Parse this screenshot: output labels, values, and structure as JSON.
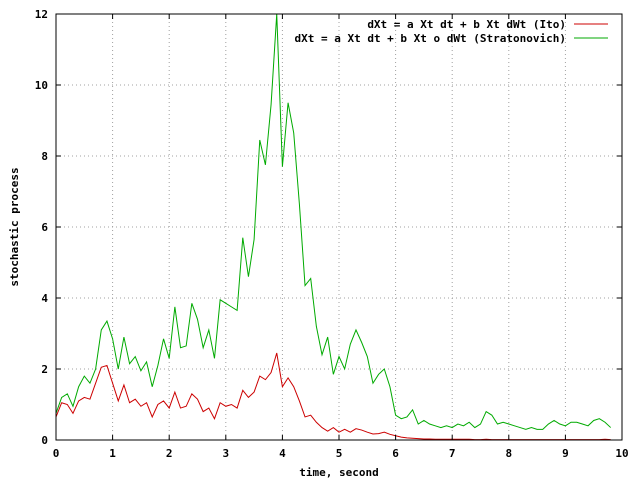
{
  "chart_data": {
    "type": "line",
    "title": "",
    "xlabel": "time, second",
    "ylabel": "stochastic process",
    "xlim": [
      0,
      10
    ],
    "ylim": [
      0,
      12
    ],
    "xticks": [
      "0",
      "1",
      "2",
      "3",
      "4",
      "5",
      "6",
      "7",
      "8",
      "9",
      "10"
    ],
    "yticks": [
      "0",
      "2",
      "4",
      "6",
      "8",
      "10",
      "12"
    ],
    "grid": true,
    "legend_position": "top-right",
    "x": [
      0,
      0.1,
      0.2,
      0.3,
      0.4,
      0.5,
      0.6,
      0.7,
      0.8,
      0.9,
      1.0,
      1.1,
      1.2,
      1.3,
      1.4,
      1.5,
      1.6,
      1.7,
      1.8,
      1.9,
      2.0,
      2.1,
      2.2,
      2.3,
      2.4,
      2.5,
      2.6,
      2.7,
      2.8,
      2.9,
      3.0,
      3.1,
      3.2,
      3.3,
      3.4,
      3.5,
      3.6,
      3.7,
      3.8,
      3.9,
      4.0,
      4.1,
      4.2,
      4.3,
      4.4,
      4.5,
      4.6,
      4.7,
      4.8,
      4.9,
      5.0,
      5.1,
      5.2,
      5.3,
      5.4,
      5.5,
      5.6,
      5.7,
      5.8,
      5.9,
      6.0,
      6.1,
      6.2,
      6.3,
      6.4,
      6.5,
      6.6,
      6.7,
      6.8,
      6.9,
      7.0,
      7.1,
      7.2,
      7.3,
      7.4,
      7.5,
      7.6,
      7.7,
      7.8,
      7.9,
      8.0,
      8.1,
      8.2,
      8.3,
      8.4,
      8.5,
      8.6,
      8.7,
      8.8,
      8.9,
      9.0,
      9.1,
      9.2,
      9.3,
      9.4,
      9.5,
      9.6,
      9.7,
      9.8
    ],
    "series": [
      {
        "name": "dXt = a Xt dt + b Xt dWt (Ito)",
        "color": "#cc0000",
        "values": [
          0.65,
          1.05,
          1.0,
          0.75,
          1.1,
          1.2,
          1.15,
          1.6,
          2.05,
          2.1,
          1.6,
          1.1,
          1.55,
          1.05,
          1.15,
          0.95,
          1.05,
          0.65,
          1.0,
          1.1,
          0.9,
          1.35,
          0.9,
          0.95,
          1.3,
          1.15,
          0.8,
          0.9,
          0.6,
          1.05,
          0.95,
          1.0,
          0.9,
          1.4,
          1.2,
          1.35,
          1.8,
          1.7,
          1.9,
          2.45,
          1.5,
          1.75,
          1.5,
          1.1,
          0.65,
          0.7,
          0.5,
          0.35,
          0.25,
          0.35,
          0.22,
          0.3,
          0.22,
          0.32,
          0.28,
          0.22,
          0.17,
          0.18,
          0.22,
          0.16,
          0.12,
          0.08,
          0.06,
          0.05,
          0.04,
          0.03,
          0.03,
          0.02,
          0.02,
          0.02,
          0.02,
          0.02,
          0.02,
          0.02,
          0.01,
          0.01,
          0.02,
          0.01,
          0.01,
          0.01,
          0.01,
          0.01,
          0.01,
          0.01,
          0.01,
          0.01,
          0.01,
          0.01,
          0.01,
          0.01,
          0.01,
          0.01,
          0.01,
          0.01,
          0.01,
          0.01,
          0.01,
          0.02,
          0.01
        ]
      },
      {
        "name": "dXt = a Xt dt + b Xt o dWt (Stratonovich)",
        "color": "#00aa00",
        "values": [
          0.75,
          1.2,
          1.3,
          0.95,
          1.5,
          1.8,
          1.6,
          2.0,
          3.1,
          3.35,
          2.85,
          2.0,
          2.9,
          2.15,
          2.35,
          1.95,
          2.2,
          1.5,
          2.1,
          2.85,
          2.3,
          3.75,
          2.6,
          2.65,
          3.85,
          3.4,
          2.6,
          3.1,
          2.3,
          3.95,
          3.85,
          3.75,
          3.65,
          5.7,
          4.6,
          5.65,
          8.45,
          7.75,
          9.45,
          12.0,
          7.7,
          9.5,
          8.65,
          6.65,
          4.35,
          4.55,
          3.2,
          2.4,
          2.9,
          1.85,
          2.35,
          2.0,
          2.7,
          3.1,
          2.75,
          2.35,
          1.6,
          1.85,
          2.0,
          1.5,
          0.7,
          0.6,
          0.65,
          0.85,
          0.45,
          0.55,
          0.45,
          0.4,
          0.35,
          0.4,
          0.35,
          0.45,
          0.4,
          0.5,
          0.35,
          0.45,
          0.8,
          0.7,
          0.45,
          0.5,
          0.45,
          0.4,
          0.35,
          0.3,
          0.35,
          0.3,
          0.3,
          0.45,
          0.55,
          0.45,
          0.4,
          0.5,
          0.5,
          0.45,
          0.4,
          0.55,
          0.6,
          0.5,
          0.35
        ]
      }
    ]
  }
}
